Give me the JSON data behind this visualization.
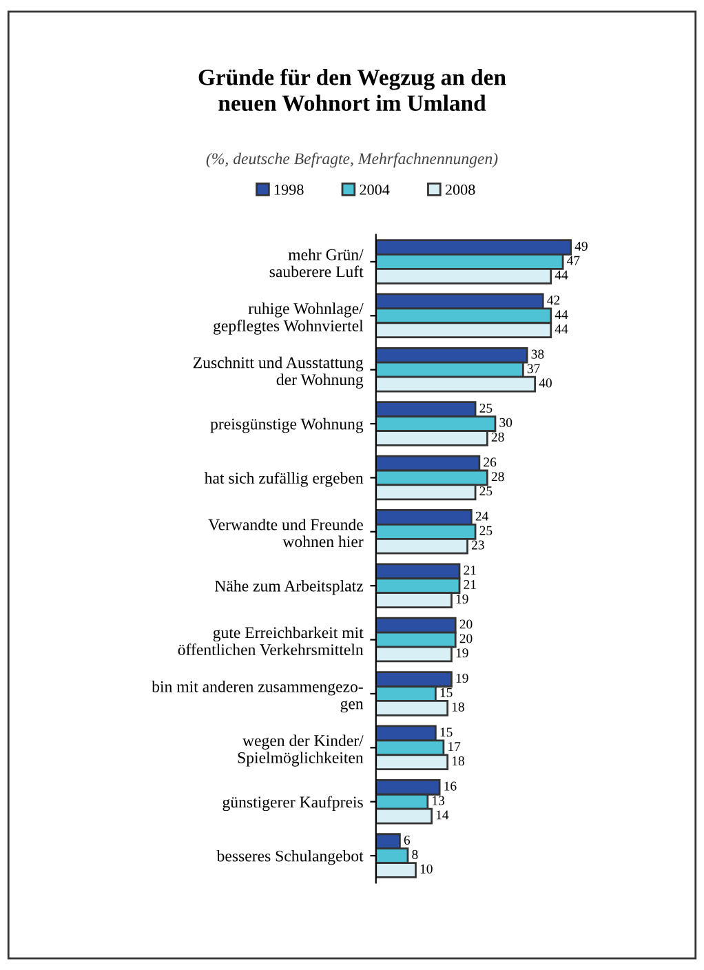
{
  "chart_data": {
    "type": "bar",
    "orientation": "horizontal",
    "title": "Gründe für den Wegzug an den\nneuen Wohnort im Umland",
    "subtitle": "(%, deutsche Befragte, Mehrfachnennungen)",
    "categories": [
      "mehr Grün/\nsauberere Luft",
      "ruhige Wohnlage/\ngepflegtes Wohnviertel",
      "Zuschnitt und Ausstattung\nder Wohnung",
      "preisgünstige Wohnung",
      "hat sich zufällig ergeben",
      "Verwandte und Freunde\nwohnen hier",
      "Nähe zum Arbeitsplatz",
      "gute Erreichbarkeit mit\nöffentlichen Verkehrsmitteln",
      "bin mit anderen zusammengezo-\ngen",
      "wegen der Kinder/\nSpielmöglichkeiten",
      "günstigerer Kaufpreis",
      "besseres Schulangebot"
    ],
    "series": [
      {
        "name": "1998",
        "color": "#2b4fa3",
        "values": [
          49,
          42,
          38,
          25,
          26,
          24,
          21,
          20,
          19,
          15,
          16,
          6
        ]
      },
      {
        "name": "2004",
        "color": "#4fc3d6",
        "values": [
          47,
          44,
          37,
          30,
          28,
          25,
          21,
          20,
          15,
          17,
          13,
          8
        ]
      },
      {
        "name": "2008",
        "color": "#d8f0f5",
        "values": [
          44,
          44,
          40,
          28,
          25,
          23,
          19,
          19,
          18,
          18,
          14,
          10
        ]
      }
    ],
    "data_labels": true,
    "legend": "top",
    "grid": false
  }
}
